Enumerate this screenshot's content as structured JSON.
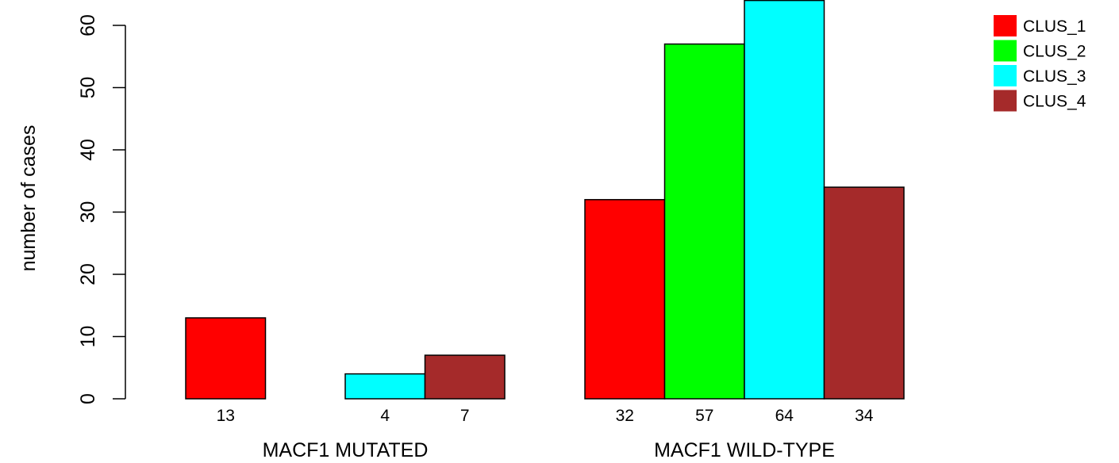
{
  "chart_data": {
    "type": "bar",
    "ylabel": "number of cases",
    "ylim": [
      0,
      60
    ],
    "yticks": [
      0,
      10,
      20,
      30,
      40,
      50,
      60
    ],
    "categories": [
      "MACF1 MUTATED",
      "MACF1 WILD-TYPE"
    ],
    "series": [
      {
        "name": "CLUS_1",
        "color": "#ff0000",
        "values": [
          13,
          32
        ]
      },
      {
        "name": "CLUS_2",
        "color": "#00ff00",
        "values": [
          0,
          57
        ]
      },
      {
        "name": "CLUS_3",
        "color": "#00ffff",
        "values": [
          4,
          64
        ]
      },
      {
        "name": "CLUS_4",
        "color": "#a52a2a",
        "values": [
          7,
          34
        ]
      }
    ],
    "value_labels": [
      [
        "13",
        "",
        "4",
        "7"
      ],
      [
        "32",
        "57",
        "64",
        "34"
      ]
    ],
    "legend_position": "top-right",
    "grid": false
  }
}
